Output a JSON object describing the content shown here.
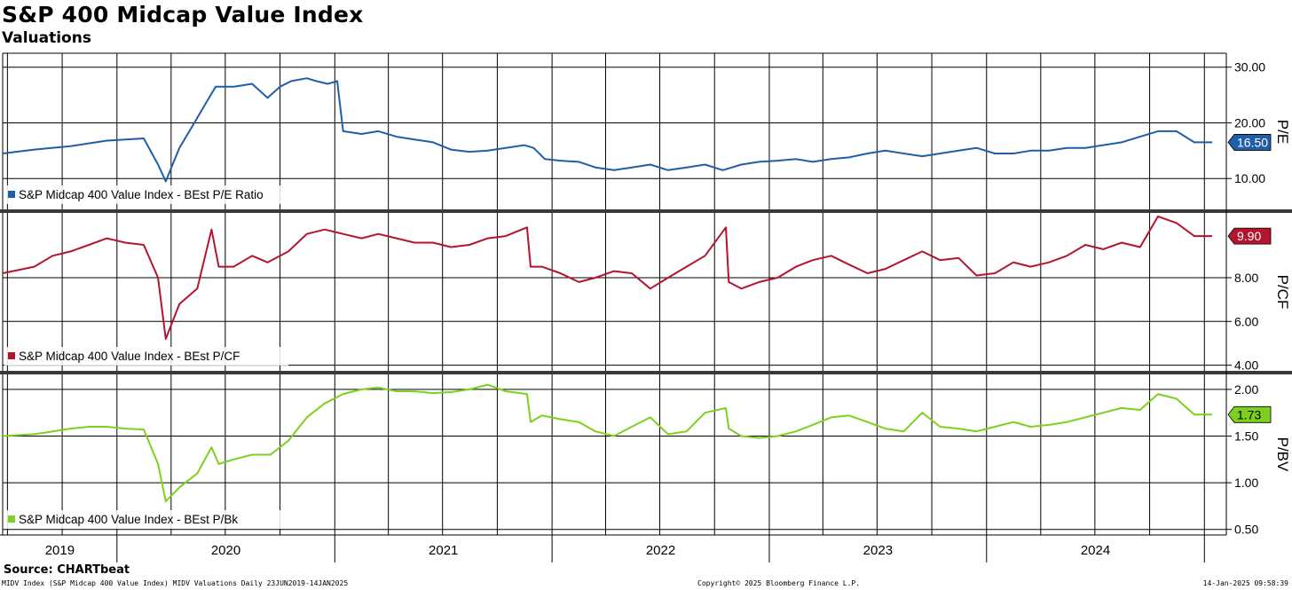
{
  "header": {
    "title": "S&P 400 Midcap Value Index",
    "subtitle": "Valuations"
  },
  "footer": {
    "source": "Source: CHARTbeat",
    "left": "MIDV Index (S&P Midcap 400 Value Index) MIDV Valuations  Daily 23JUN2019-14JAN2025",
    "center": "Copyright© 2025 Bloomberg Finance L.P.",
    "right": "14-Jan-2025 09:58:39"
  },
  "chart_data": [
    {
      "type": "line",
      "panel": "pe",
      "ylabel": "P/E",
      "ylim": [
        4.3,
        32.5
      ],
      "yticks": [
        "10.00",
        "20.00",
        "30.00"
      ],
      "color": "#1f5ea8",
      "legend": "S&P Midcap 400 Value Index - BEst P/E Ratio",
      "last_value_label": "16.50",
      "x": [
        "2019-06-23",
        "2019-08-15",
        "2019-10-15",
        "2019-12-15",
        "2020-01-15",
        "2020-02-15",
        "2020-03-10",
        "2020-03-23",
        "2020-04-15",
        "2020-05-10",
        "2020-06-01",
        "2020-06-15",
        "2020-07-15",
        "2020-08-15",
        "2020-09-10",
        "2020-10-01",
        "2020-10-20",
        "2020-11-15",
        "2020-12-01",
        "2020-12-20",
        "2021-01-05",
        "2021-01-15",
        "2021-02-15",
        "2021-03-15",
        "2021-04-15",
        "2021-05-15",
        "2021-06-15",
        "2021-07-15",
        "2021-08-15",
        "2021-09-15",
        "2021-10-15",
        "2021-11-15",
        "2021-12-01",
        "2021-12-20",
        "2022-01-15",
        "2022-02-15",
        "2022-03-15",
        "2022-04-15",
        "2022-05-15",
        "2022-06-15",
        "2022-07-15",
        "2022-08-15",
        "2022-09-15",
        "2022-10-15",
        "2022-11-15",
        "2022-12-15",
        "2023-01-15",
        "2023-02-15",
        "2023-03-15",
        "2023-04-15",
        "2023-05-15",
        "2023-06-15",
        "2023-07-15",
        "2023-08-15",
        "2023-09-15",
        "2023-10-15",
        "2023-11-15",
        "2023-12-15",
        "2024-01-15",
        "2024-02-15",
        "2024-03-15",
        "2024-04-15",
        "2024-05-15",
        "2024-06-15",
        "2024-07-15",
        "2024-08-15",
        "2024-09-15",
        "2024-10-15",
        "2024-11-15",
        "2024-12-15",
        "2025-01-14"
      ],
      "values": [
        14.5,
        15.2,
        15.8,
        16.8,
        17.0,
        17.2,
        12.5,
        9.5,
        15.5,
        20.0,
        24.0,
        26.5,
        26.5,
        27.0,
        24.5,
        26.5,
        27.5,
        28.0,
        27.5,
        27.0,
        27.5,
        18.5,
        18.0,
        18.5,
        17.5,
        17.0,
        16.5,
        15.2,
        14.8,
        15.0,
        15.5,
        16.0,
        15.5,
        13.5,
        13.2,
        13.0,
        12.0,
        11.5,
        12.0,
        12.5,
        11.5,
        12.0,
        12.5,
        11.5,
        12.5,
        13.0,
        13.2,
        13.5,
        13.0,
        13.5,
        13.8,
        14.5,
        15.0,
        14.5,
        14.0,
        14.5,
        15.0,
        15.5,
        14.5,
        14.5,
        15.0,
        15.0,
        15.5,
        15.5,
        16.0,
        16.5,
        17.5,
        18.5,
        18.5,
        16.5,
        16.5
      ]
    },
    {
      "type": "line",
      "panel": "pcf",
      "ylabel": "P/CF",
      "ylim": [
        3.7,
        11.0
      ],
      "yticks": [
        "4.00",
        "6.00",
        "8.00"
      ],
      "color": "#b4152e",
      "legend": "S&P Midcap 400 Value Index - BEst P/CF",
      "last_value_label": "9.90",
      "x": [
        "2019-06-23",
        "2019-08-15",
        "2019-09-15",
        "2019-10-15",
        "2019-11-15",
        "2019-12-15",
        "2020-01-15",
        "2020-02-15",
        "2020-03-10",
        "2020-03-23",
        "2020-04-15",
        "2020-05-15",
        "2020-06-08",
        "2020-06-20",
        "2020-07-15",
        "2020-08-15",
        "2020-09-10",
        "2020-10-15",
        "2020-11-15",
        "2020-12-15",
        "2021-01-15",
        "2021-02-15",
        "2021-03-15",
        "2021-04-15",
        "2021-05-15",
        "2021-06-15",
        "2021-07-15",
        "2021-08-15",
        "2021-09-15",
        "2021-10-15",
        "2021-11-20",
        "2021-11-26",
        "2021-12-15",
        "2022-01-15",
        "2022-02-15",
        "2022-03-15",
        "2022-04-15",
        "2022-05-15",
        "2022-06-15",
        "2022-07-15",
        "2022-08-15",
        "2022-09-15",
        "2022-10-20",
        "2022-10-25",
        "2022-11-15",
        "2022-12-15",
        "2023-01-15",
        "2023-02-15",
        "2023-03-15",
        "2023-04-15",
        "2023-05-15",
        "2023-06-15",
        "2023-07-15",
        "2023-08-15",
        "2023-09-15",
        "2023-10-15",
        "2023-11-15",
        "2023-12-15",
        "2024-01-15",
        "2024-02-15",
        "2024-03-15",
        "2024-04-15",
        "2024-05-15",
        "2024-06-15",
        "2024-07-15",
        "2024-08-15",
        "2024-09-15",
        "2024-10-15",
        "2024-11-15",
        "2024-12-15",
        "2025-01-14"
      ],
      "values": [
        8.2,
        8.5,
        9.0,
        9.2,
        9.5,
        9.8,
        9.6,
        9.5,
        8.0,
        5.2,
        6.8,
        7.5,
        10.2,
        8.5,
        8.5,
        9.0,
        8.7,
        9.2,
        10.0,
        10.2,
        10.0,
        9.8,
        10.0,
        9.8,
        9.6,
        9.6,
        9.4,
        9.5,
        9.8,
        9.9,
        10.3,
        8.5,
        8.5,
        8.2,
        7.8,
        8.0,
        8.3,
        8.2,
        7.5,
        8.0,
        8.5,
        9.0,
        10.3,
        7.8,
        7.5,
        7.8,
        8.0,
        8.5,
        8.8,
        9.0,
        8.6,
        8.2,
        8.4,
        8.8,
        9.2,
        8.8,
        8.9,
        8.1,
        8.2,
        8.7,
        8.5,
        8.7,
        9.0,
        9.5,
        9.3,
        9.6,
        9.4,
        10.8,
        10.5,
        9.9,
        9.9
      ]
    },
    {
      "type": "line",
      "panel": "pbv",
      "ylabel": "P/BV",
      "ylim": [
        0.44,
        2.17
      ],
      "yticks": [
        "0.50",
        "1.00",
        "1.50",
        "2.00"
      ],
      "color": "#7fd01e",
      "legend": "S&P Midcap 400 Value Index - BEst P/Bk",
      "last_value_label": "1.73",
      "x": [
        "2019-06-23",
        "2019-08-15",
        "2019-09-15",
        "2019-10-15",
        "2019-11-15",
        "2019-12-15",
        "2020-01-15",
        "2020-02-15",
        "2020-03-10",
        "2020-03-23",
        "2020-04-15",
        "2020-05-15",
        "2020-06-08",
        "2020-06-20",
        "2020-07-15",
        "2020-08-15",
        "2020-09-15",
        "2020-10-15",
        "2020-11-15",
        "2020-12-15",
        "2021-01-15",
        "2021-02-15",
        "2021-03-15",
        "2021-04-15",
        "2021-05-15",
        "2021-06-15",
        "2021-07-15",
        "2021-08-15",
        "2021-09-15",
        "2021-10-15",
        "2021-11-20",
        "2021-11-26",
        "2021-12-15",
        "2022-01-15",
        "2022-02-15",
        "2022-03-15",
        "2022-04-15",
        "2022-05-15",
        "2022-06-15",
        "2022-07-15",
        "2022-08-15",
        "2022-09-15",
        "2022-10-20",
        "2022-10-25",
        "2022-11-15",
        "2022-12-15",
        "2023-01-15",
        "2023-02-15",
        "2023-03-15",
        "2023-04-15",
        "2023-05-15",
        "2023-06-15",
        "2023-07-15",
        "2023-08-15",
        "2023-09-15",
        "2023-10-15",
        "2023-11-15",
        "2023-12-15",
        "2024-01-15",
        "2024-02-15",
        "2024-03-15",
        "2024-04-15",
        "2024-05-15",
        "2024-06-15",
        "2024-07-15",
        "2024-08-15",
        "2024-09-15",
        "2024-10-15",
        "2024-11-15",
        "2024-12-15",
        "2025-01-14"
      ],
      "values": [
        1.5,
        1.52,
        1.55,
        1.58,
        1.6,
        1.6,
        1.58,
        1.57,
        1.2,
        0.8,
        0.95,
        1.1,
        1.38,
        1.2,
        1.25,
        1.3,
        1.3,
        1.45,
        1.7,
        1.85,
        1.95,
        2.0,
        2.02,
        1.98,
        1.98,
        1.96,
        1.97,
        2.0,
        2.05,
        1.98,
        1.95,
        1.65,
        1.72,
        1.68,
        1.65,
        1.55,
        1.5,
        1.6,
        1.7,
        1.52,
        1.55,
        1.75,
        1.8,
        1.58,
        1.5,
        1.48,
        1.5,
        1.55,
        1.62,
        1.7,
        1.72,
        1.65,
        1.58,
        1.55,
        1.75,
        1.6,
        1.58,
        1.55,
        1.6,
        1.65,
        1.6,
        1.62,
        1.65,
        1.7,
        1.75,
        1.8,
        1.78,
        1.95,
        1.9,
        1.73,
        1.73
      ]
    }
  ],
  "x_axis": {
    "year_labels": [
      "2019",
      "2020",
      "2021",
      "2022",
      "2023",
      "2024"
    ]
  }
}
